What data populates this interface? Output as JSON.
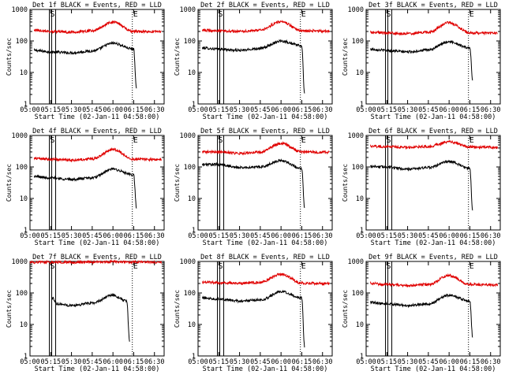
{
  "chart_data": [
    {
      "type": "line",
      "title": "Det 1f BLACK = Events, RED = LLD",
      "xlabel": "Start Time (02-Jan-11 04:58:00)",
      "ylabel": "Counts/sec",
      "x_ticks": [
        "05:00",
        "05:15",
        "05:30",
        "05:45",
        "06:00",
        "06:15",
        "06:30"
      ],
      "y_ticks": [
        "1",
        "10",
        "100",
        "1000"
      ],
      "yscale": "log",
      "ylim": [
        1,
        1000
      ],
      "xlim": [
        "05:00",
        "06:37"
      ],
      "markers": [
        "S",
        "E"
      ],
      "series": [
        {
          "color": "#000000",
          "x": [
            "05:03",
            "05:15",
            "05:30",
            "05:45",
            "06:00",
            "06:15",
            "06:17"
          ],
          "values": [
            50,
            45,
            42,
            48,
            85,
            55,
            3
          ]
        },
        {
          "color": "#e00000",
          "x": [
            "05:03",
            "05:15",
            "05:30",
            "05:45",
            "06:00",
            "06:15",
            "06:35"
          ],
          "values": [
            220,
            200,
            190,
            210,
            400,
            200,
            195
          ]
        }
      ]
    },
    {
      "type": "line",
      "title": "Det 2f BLACK = Events, RED = LLD",
      "xlabel": "Start Time (02-Jan-11 04:58:00)",
      "ylabel": "Counts/sec",
      "x_ticks": [
        "05:00",
        "05:15",
        "05:30",
        "05:45",
        "06:00",
        "06:15",
        "06:30"
      ],
      "y_ticks": [
        "1",
        "10",
        "100",
        "1000"
      ],
      "yscale": "log",
      "ylim": [
        1,
        1000
      ],
      "xlim": [
        "05:00",
        "06:37"
      ],
      "markers": [
        "S",
        "E"
      ],
      "series": [
        {
          "color": "#000000",
          "x": [
            "05:03",
            "05:15",
            "05:30",
            "05:45",
            "06:00",
            "06:15",
            "06:17"
          ],
          "values": [
            60,
            55,
            50,
            58,
            100,
            70,
            2
          ]
        },
        {
          "color": "#e00000",
          "x": [
            "05:03",
            "05:15",
            "05:30",
            "05:45",
            "06:00",
            "06:15",
            "06:35"
          ],
          "values": [
            220,
            210,
            200,
            220,
            420,
            210,
            205
          ]
        }
      ]
    },
    {
      "type": "line",
      "title": "Det 3f BLACK = Events, RED = LLD",
      "xlabel": "Start Time (02-Jan-11 04:58:00)",
      "ylabel": "Counts/sec",
      "x_ticks": [
        "05:00",
        "05:15",
        "05:30",
        "05:45",
        "06:00",
        "06:15",
        "06:30"
      ],
      "y_ticks": [
        "1",
        "10",
        "100",
        "1000"
      ],
      "yscale": "log",
      "ylim": [
        1,
        1000
      ],
      "xlim": [
        "05:00",
        "06:37"
      ],
      "markers": [
        "S",
        "E"
      ],
      "series": [
        {
          "color": "#000000",
          "x": [
            "05:03",
            "05:15",
            "05:30",
            "05:45",
            "06:00",
            "06:15",
            "06:17"
          ],
          "values": [
            55,
            50,
            45,
            52,
            95,
            60,
            6
          ]
        },
        {
          "color": "#e00000",
          "x": [
            "05:03",
            "05:15",
            "05:30",
            "05:45",
            "06:00",
            "06:15",
            "06:35"
          ],
          "values": [
            190,
            180,
            170,
            190,
            380,
            180,
            175
          ]
        }
      ]
    },
    {
      "type": "line",
      "title": "Det 4f BLACK = Events, RED = LLD",
      "xlabel": "Start Time (02-Jan-11 04:58:00)",
      "ylabel": "Counts/sec",
      "x_ticks": [
        "05:00",
        "05:15",
        "05:30",
        "05:45",
        "06:00",
        "06:15",
        "06:30"
      ],
      "y_ticks": [
        "1",
        "10",
        "100",
        "1000"
      ],
      "yscale": "log",
      "ylim": [
        1,
        1000
      ],
      "xlim": [
        "05:00",
        "06:37"
      ],
      "markers": [
        "S",
        "E"
      ],
      "series": [
        {
          "color": "#000000",
          "x": [
            "05:03",
            "05:15",
            "05:30",
            "05:45",
            "06:00",
            "06:15",
            "06:17"
          ],
          "values": [
            50,
            45,
            40,
            45,
            85,
            55,
            5
          ]
        },
        {
          "color": "#e00000",
          "x": [
            "05:03",
            "05:15",
            "05:30",
            "05:45",
            "06:00",
            "06:15",
            "06:35"
          ],
          "values": [
            190,
            175,
            165,
            180,
            360,
            175,
            170
          ]
        }
      ]
    },
    {
      "type": "line",
      "title": "Det 5f BLACK = Events, RED = LLD",
      "xlabel": "Start Time (02-Jan-11 04:58:00)",
      "ylabel": "Counts/sec",
      "x_ticks": [
        "05:00",
        "05:15",
        "05:30",
        "05:45",
        "06:00",
        "06:15",
        "06:30"
      ],
      "y_ticks": [
        "1",
        "10",
        "100",
        "1000"
      ],
      "yscale": "log",
      "ylim": [
        1,
        1000
      ],
      "xlim": [
        "05:00",
        "06:37"
      ],
      "markers": [
        "S",
        "E"
      ],
      "series": [
        {
          "color": "#000000",
          "x": [
            "05:03",
            "05:15",
            "05:30",
            "05:45",
            "06:00",
            "06:15",
            "06:17"
          ],
          "values": [
            120,
            120,
            95,
            100,
            160,
            90,
            5
          ]
        },
        {
          "color": "#e00000",
          "x": [
            "05:03",
            "05:15",
            "05:30",
            "05:45",
            "06:00",
            "06:15",
            "06:35"
          ],
          "values": [
            300,
            300,
            270,
            300,
            560,
            300,
            290
          ]
        }
      ]
    },
    {
      "type": "line",
      "title": "Det 6f BLACK = Events, RED = LLD",
      "xlabel": "Start Time (02-Jan-11 04:58:00)",
      "ylabel": "Counts/sec",
      "x_ticks": [
        "05:00",
        "05:15",
        "05:30",
        "05:45",
        "06:00",
        "06:15",
        "06:30"
      ],
      "y_ticks": [
        "1",
        "10",
        "100",
        "1000"
      ],
      "yscale": "log",
      "ylim": [
        1,
        1000
      ],
      "xlim": [
        "05:00",
        "06:37"
      ],
      "markers": [
        "S",
        "E"
      ],
      "series": [
        {
          "color": "#000000",
          "x": [
            "05:03",
            "05:15",
            "05:30",
            "05:45",
            "06:00",
            "06:15",
            "06:17"
          ],
          "values": [
            105,
            100,
            85,
            95,
            150,
            90,
            4
          ]
        },
        {
          "color": "#e00000",
          "x": [
            "05:03",
            "05:15",
            "05:30",
            "05:45",
            "06:00",
            "06:15",
            "06:35"
          ],
          "values": [
            450,
            440,
            420,
            450,
            620,
            430,
            420
          ]
        }
      ]
    },
    {
      "type": "line",
      "title": "Det 7f BLACK = Events, RED = LLD",
      "xlabel": "Start Time (02-Jan-11 04:58:00)",
      "ylabel": "Counts/sec",
      "x_ticks": [
        "05:00",
        "05:15",
        "05:30",
        "05:45",
        "06:00",
        "06:15",
        "06:30"
      ],
      "y_ticks": [
        "1",
        "10",
        "100",
        "1000"
      ],
      "yscale": "log",
      "ylim": [
        1,
        1000
      ],
      "xlim": [
        "05:00",
        "06:37"
      ],
      "markers": [
        "S",
        "E"
      ],
      "series": [
        {
          "color": "#000000",
          "x": [
            "05:16",
            "05:20",
            "05:30",
            "05:45",
            "06:00",
            "06:10",
            "06:12"
          ],
          "values": [
            70,
            45,
            40,
            48,
            85,
            55,
            3
          ]
        },
        {
          "color": "#e00000",
          "x": [
            "05:00",
            "05:15",
            "05:30",
            "05:45",
            "06:00",
            "06:15",
            "06:35"
          ],
          "values": [
            950,
            950,
            950,
            950,
            980,
            950,
            950
          ]
        }
      ]
    },
    {
      "type": "line",
      "title": "Det 8f BLACK = Events, RED = LLD",
      "xlabel": "Start Time (02-Jan-11 04:58:00)",
      "ylabel": "Counts/sec",
      "x_ticks": [
        "05:00",
        "05:15",
        "05:30",
        "05:45",
        "06:00",
        "06:15",
        "06:30"
      ],
      "y_ticks": [
        "1",
        "10",
        "100",
        "1000"
      ],
      "yscale": "log",
      "ylim": [
        1,
        1000
      ],
      "xlim": [
        "05:00",
        "06:37"
      ],
      "markers": [
        "S",
        "E"
      ],
      "series": [
        {
          "color": "#000000",
          "x": [
            "05:03",
            "05:15",
            "05:30",
            "05:45",
            "06:00",
            "06:15",
            "06:17"
          ],
          "values": [
            70,
            65,
            55,
            60,
            110,
            70,
            2
          ]
        },
        {
          "color": "#e00000",
          "x": [
            "05:03",
            "05:15",
            "05:30",
            "05:45",
            "06:00",
            "06:15",
            "06:35"
          ],
          "values": [
            220,
            210,
            200,
            215,
            400,
            205,
            200
          ]
        }
      ]
    },
    {
      "type": "line",
      "title": "Det 9f BLACK = Events, RED = LLD",
      "xlabel": "Start Time (02-Jan-11 04:58:00)",
      "ylabel": "Counts/sec",
      "x_ticks": [
        "05:00",
        "05:15",
        "05:30",
        "05:45",
        "06:00",
        "06:15",
        "06:30"
      ],
      "y_ticks": [
        "1",
        "10",
        "100",
        "1000"
      ],
      "yscale": "log",
      "ylim": [
        1,
        1000
      ],
      "xlim": [
        "05:00",
        "06:37"
      ],
      "markers": [
        "S",
        "E"
      ],
      "series": [
        {
          "color": "#000000",
          "x": [
            "05:03",
            "05:15",
            "05:30",
            "05:45",
            "06:00",
            "06:15",
            "06:17"
          ],
          "values": [
            50,
            45,
            40,
            45,
            85,
            55,
            4
          ]
        },
        {
          "color": "#e00000",
          "x": [
            "05:03",
            "05:15",
            "05:30",
            "05:45",
            "06:00",
            "06:15",
            "06:35"
          ],
          "values": [
            200,
            185,
            170,
            185,
            360,
            185,
            180
          ]
        }
      ]
    }
  ]
}
